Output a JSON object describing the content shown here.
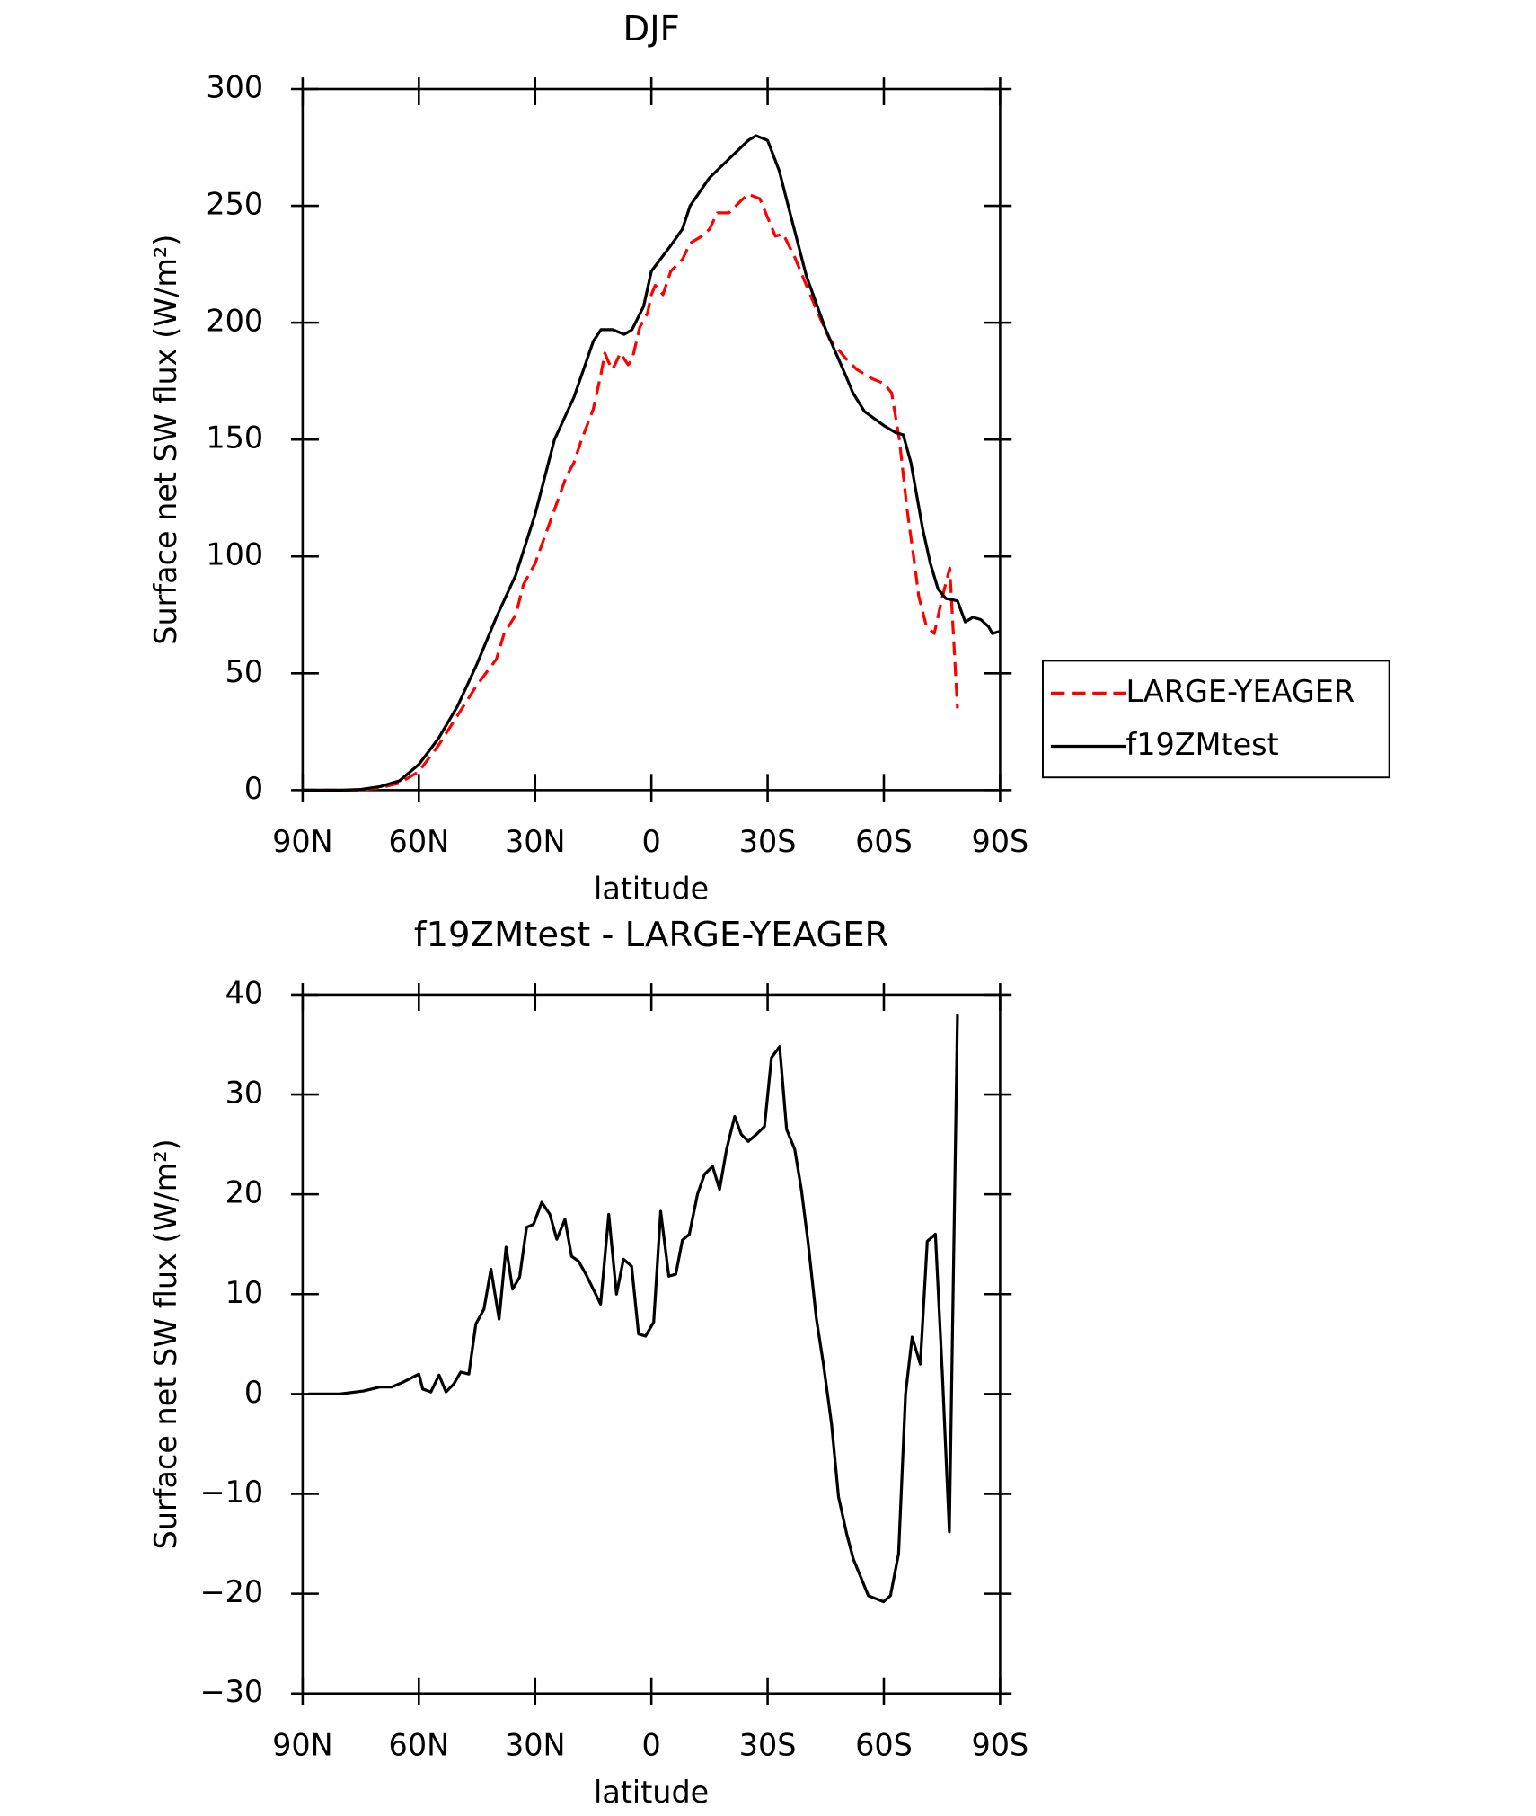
{
  "chart_data": [
    {
      "type": "line",
      "title": "DJF",
      "x_label": "latitude",
      "y_label": "Surface net SW flux (W/m²)",
      "xlim": [
        90,
        -90
      ],
      "ylim": [
        0,
        300
      ],
      "xticks": [
        {
          "value": 90,
          "label": "90N"
        },
        {
          "value": 60,
          "label": "60N"
        },
        {
          "value": 30,
          "label": "30N"
        },
        0,
        {
          "value": -30,
          "label": "30S"
        },
        {
          "value": -60,
          "label": "60S"
        },
        {
          "value": -90,
          "label": "90S"
        }
      ],
      "yticks": [
        0,
        50,
        100,
        150,
        200,
        250,
        300
      ],
      "legend": "right",
      "series": [
        {
          "name": "LARGE-YEAGER",
          "color": "#ff0000",
          "dashed": true,
          "x": [
            90,
            85,
            80,
            75,
            70,
            65,
            60,
            55,
            50,
            45,
            40,
            38,
            35,
            33,
            30,
            25,
            22,
            20,
            18,
            15,
            13,
            12,
            11,
            10,
            8,
            6,
            5,
            3,
            1,
            0,
            -1,
            -3,
            -5,
            -8,
            -10,
            -13,
            -15,
            -17,
            -20,
            -23,
            -25,
            -28,
            -30,
            -32,
            -34,
            -37,
            -40,
            -43,
            -46,
            -50,
            -53,
            -57,
            -60,
            -62,
            -64,
            -66,
            -68,
            -69,
            -71,
            -73,
            -75,
            -77,
            -79
          ],
          "values": [
            0,
            0,
            0,
            0,
            1,
            3,
            8,
            19,
            32,
            45,
            56,
            67,
            75,
            88,
            97,
            120,
            134,
            140,
            150,
            163,
            178,
            187,
            183,
            180,
            187,
            182,
            184,
            198,
            204,
            212,
            216,
            212,
            222,
            227,
            234,
            237,
            240,
            247,
            247,
            252,
            255,
            253,
            245,
            237,
            238,
            228,
            216,
            204,
            193,
            185,
            180,
            176,
            174,
            170,
            150,
            120,
            96,
            83,
            70,
            67,
            82,
            95,
            35
          ]
        },
        {
          "name": "f19ZMtest",
          "color": "#000000",
          "dashed": false,
          "x": [
            90,
            85,
            80,
            75,
            70,
            65,
            60,
            55,
            50,
            45,
            40,
            35,
            30,
            25,
            20,
            15,
            13,
            10,
            7,
            5,
            2,
            0,
            -5,
            -8,
            -10,
            -15,
            -20,
            -25,
            -27,
            -30,
            -33,
            -35,
            -40,
            -45,
            -50,
            -52,
            -55,
            -60,
            -63,
            -65,
            -67,
            -70,
            -72,
            -74,
            -76,
            -79,
            -81,
            -83,
            -85,
            -87,
            -88,
            -90
          ],
          "values": [
            0,
            0,
            0,
            0.3,
            1.5,
            4,
            11,
            22,
            36,
            54,
            74,
            92,
            118,
            150,
            168,
            192,
            197,
            197,
            195,
            197,
            207,
            222,
            233,
            240,
            250,
            262,
            270,
            278,
            280,
            278,
            265,
            252,
            220,
            197,
            178,
            170,
            162,
            156,
            153,
            152,
            140,
            112,
            97,
            86,
            82,
            81,
            72,
            74,
            73,
            70,
            67,
            68
          ]
        }
      ]
    },
    {
      "type": "line",
      "title": "f19ZMtest - LARGE-YEAGER",
      "x_label": "latitude",
      "y_label": "Surface net SW flux (W/m²)",
      "xlim": [
        90,
        -90
      ],
      "ylim": [
        -30,
        40
      ],
      "xticks": [
        {
          "value": 90,
          "label": "90N"
        },
        {
          "value": 60,
          "label": "60N"
        },
        {
          "value": 30,
          "label": "30N"
        },
        0,
        {
          "value": -30,
          "label": "30S"
        },
        {
          "value": -60,
          "label": "60S"
        },
        {
          "value": -90,
          "label": "90S"
        }
      ],
      "yticks": [
        {
          "value": -30,
          "label": "−30"
        },
        {
          "value": -20,
          "label": "−20"
        },
        {
          "value": -10,
          "label": "−10"
        },
        0,
        10,
        20,
        30,
        40
      ],
      "series": [
        {
          "color": "#000000",
          "dashed": false,
          "x": [
            88.5,
            80.4,
            74.3,
            70,
            67,
            64,
            60,
            59,
            56.9,
            54.8,
            53,
            51,
            49.2,
            47.1,
            45.3,
            43.2,
            41.4,
            39.3,
            37.5,
            35.8,
            34,
            32.2,
            30.4,
            28.3,
            26.2,
            24.4,
            22.3,
            20.6,
            18.8,
            16.9,
            15,
            13.1,
            11,
            9,
            7.2,
            5.1,
            3.3,
            1.5,
            -0.6,
            -2.4,
            -4.5,
            -6.3,
            -8,
            -9.8,
            -11.9,
            -13.7,
            -15.8,
            -17.6,
            -19.4,
            -21.5,
            -23.2,
            -25,
            -27.1,
            -29.2,
            -31,
            -33.1,
            -34.9,
            -37,
            -38.7,
            -40.5,
            -42.6,
            -44.4,
            -46.5,
            -48.3,
            -50.4,
            -52.1,
            -56,
            -59.9,
            -61.7,
            -63.8,
            -65.6,
            -67.3,
            -69.4,
            -71.2,
            -73.3,
            -75.1,
            -76.9,
            -79
          ],
          "values": [
            0,
            0,
            0.3,
            0.7,
            0.7,
            1.2,
            2,
            0.5,
            0.2,
            1.9,
            0.2,
            1,
            2.2,
            2,
            7,
            8.5,
            12.5,
            7.5,
            14.7,
            10.5,
            11.7,
            16.7,
            17,
            19.2,
            18,
            15.5,
            17.5,
            13.8,
            13.3,
            12,
            10.5,
            9,
            18,
            10,
            13.5,
            12.8,
            6,
            5.8,
            7.2,
            18.3,
            11.8,
            12,
            15.4,
            16,
            20,
            22,
            22.8,
            20.5,
            24.5,
            27.8,
            26,
            25.3,
            26,
            26.8,
            33.7,
            34.8,
            26.5,
            24.5,
            20.5,
            15,
            7.5,
            3,
            -3,
            -10.3,
            -14,
            -16.5,
            -20.2,
            -20.8,
            -20.2,
            -16,
            0,
            5.7,
            3,
            15.3,
            16,
            2,
            -13.8,
            38
          ]
        }
      ]
    }
  ]
}
